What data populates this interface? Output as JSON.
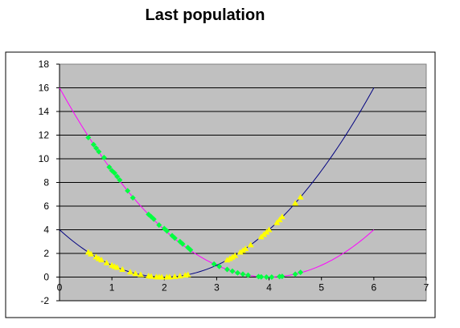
{
  "chart_data": {
    "type": "scatter",
    "title": "Last population",
    "xlabel": "",
    "ylabel": "",
    "xlim": [
      0,
      7
    ],
    "ylim": [
      -2,
      18
    ],
    "xticks": [
      "0",
      "1",
      "2",
      "3",
      "4",
      "5",
      "6",
      "7"
    ],
    "yticks": [
      "-2",
      "0",
      "2",
      "4",
      "6",
      "8",
      "10",
      "12",
      "14",
      "16",
      "18"
    ],
    "plot_background": "#c0c0c0",
    "gridlines": "horizontal",
    "legend": "none",
    "curves": [
      {
        "color": "#ff00ff",
        "function": "(x-4)^2",
        "x_range": [
          0,
          6
        ]
      },
      {
        "color": "#000080",
        "function": "(x-2)^2",
        "x_range": [
          0,
          6
        ]
      }
    ],
    "series": [
      {
        "color": "#00ff40",
        "marker": "diamond",
        "points": [
          [
            0.55,
            11.8
          ],
          [
            0.65,
            11.2
          ],
          [
            0.7,
            10.9
          ],
          [
            0.75,
            10.6
          ],
          [
            0.85,
            10.1
          ],
          [
            0.95,
            9.3
          ],
          [
            1.0,
            9.0
          ],
          [
            1.05,
            8.8
          ],
          [
            1.1,
            8.5
          ],
          [
            1.15,
            8.2
          ],
          [
            1.3,
            7.3
          ],
          [
            1.4,
            6.7
          ],
          [
            1.7,
            5.3
          ],
          [
            1.75,
            5.1
          ],
          [
            1.8,
            4.9
          ],
          [
            1.9,
            4.4
          ],
          [
            2.0,
            4.1
          ],
          [
            2.05,
            3.9
          ],
          [
            2.15,
            3.5
          ],
          [
            2.2,
            3.3
          ],
          [
            2.3,
            3.0
          ],
          [
            2.35,
            2.8
          ],
          [
            2.45,
            2.5
          ],
          [
            2.5,
            2.3
          ],
          [
            2.95,
            1.1
          ],
          [
            3.05,
            0.9
          ],
          [
            3.2,
            0.64
          ],
          [
            3.3,
            0.5
          ],
          [
            3.4,
            0.36
          ],
          [
            3.5,
            0.25
          ],
          [
            3.6,
            0.16
          ],
          [
            3.8,
            0.04
          ],
          [
            3.85,
            0.02
          ],
          [
            3.95,
            0.0
          ],
          [
            4.05,
            0.0
          ],
          [
            4.2,
            0.04
          ],
          [
            4.25,
            0.06
          ],
          [
            4.5,
            0.25
          ],
          [
            4.6,
            0.4
          ]
        ]
      },
      {
        "color": "#ffff00",
        "marker": "triangle",
        "points": [
          [
            0.55,
            2.1
          ],
          [
            0.6,
            1.95
          ],
          [
            0.7,
            1.7
          ],
          [
            0.75,
            1.56
          ],
          [
            0.8,
            1.45
          ],
          [
            0.9,
            1.2
          ],
          [
            1.0,
            1.0
          ],
          [
            1.05,
            0.9
          ],
          [
            1.1,
            0.81
          ],
          [
            1.2,
            0.64
          ],
          [
            1.35,
            0.42
          ],
          [
            1.45,
            0.3
          ],
          [
            1.55,
            0.2
          ],
          [
            1.7,
            0.09
          ],
          [
            1.75,
            0.06
          ],
          [
            1.85,
            0.02
          ],
          [
            1.9,
            0.01
          ],
          [
            1.95,
            0.0
          ],
          [
            2.05,
            0.0
          ],
          [
            2.1,
            0.01
          ],
          [
            2.2,
            0.04
          ],
          [
            2.3,
            0.09
          ],
          [
            2.4,
            0.16
          ],
          [
            2.45,
            0.2
          ],
          [
            3.2,
            1.44
          ],
          [
            3.25,
            1.56
          ],
          [
            3.3,
            1.69
          ],
          [
            3.35,
            1.82
          ],
          [
            3.45,
            2.1
          ],
          [
            3.5,
            2.25
          ],
          [
            3.55,
            2.4
          ],
          [
            3.65,
            2.72
          ],
          [
            3.85,
            3.4
          ],
          [
            3.9,
            3.6
          ],
          [
            3.95,
            3.8
          ],
          [
            4.0,
            4.0
          ],
          [
            4.15,
            4.6
          ],
          [
            4.2,
            4.84
          ],
          [
            4.25,
            5.1
          ],
          [
            4.5,
            6.25
          ],
          [
            4.6,
            6.76
          ]
        ]
      }
    ]
  }
}
